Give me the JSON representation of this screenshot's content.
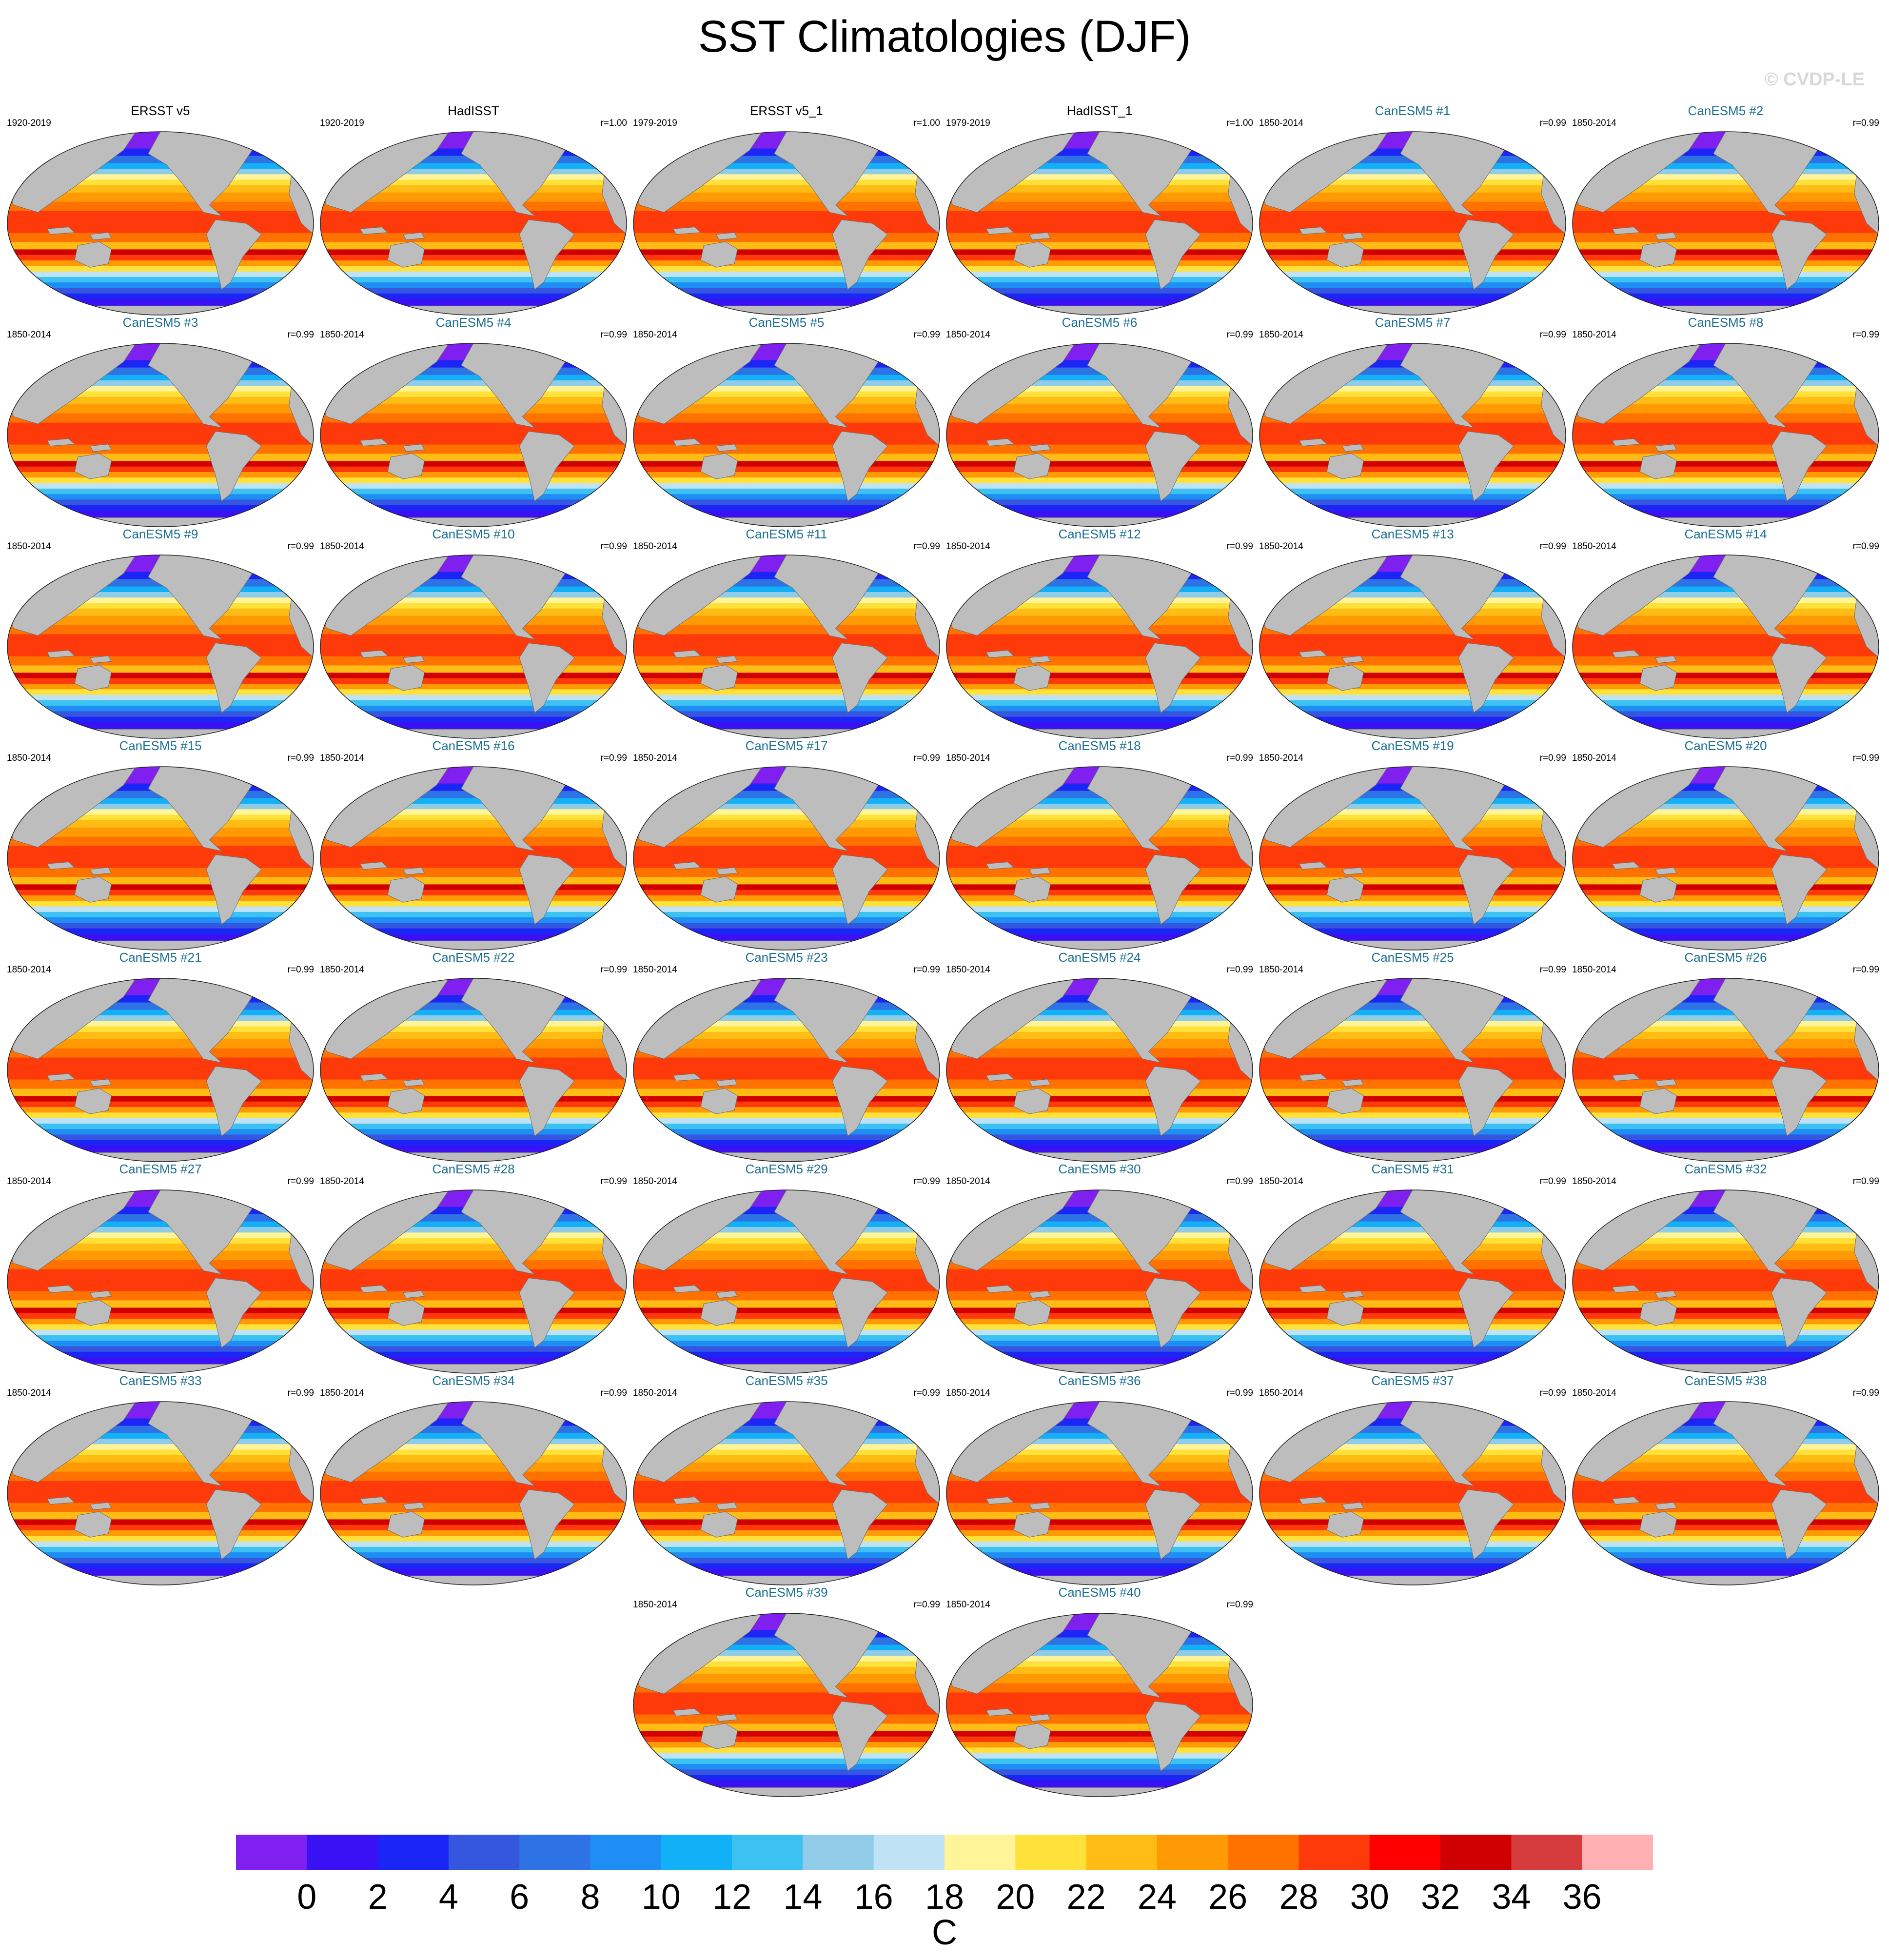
{
  "chart_data": {
    "type": "heatmap",
    "title": "SST Climatologies (DJF)",
    "watermark": "© CVDP-LE",
    "colorbar": {
      "units": "C",
      "ticks": [
        "0",
        "2",
        "4",
        "6",
        "8",
        "10",
        "12",
        "14",
        "16",
        "18",
        "20",
        "22",
        "24",
        "26",
        "28",
        "30",
        "32",
        "34",
        "36"
      ],
      "colors": [
        "#7f1ff0",
        "#3a10f5",
        "#1b25f5",
        "#3557df",
        "#2e73e6",
        "#1e8ef5",
        "#12b1f7",
        "#3cc2f2",
        "#90cbe8",
        "#bfe2f5",
        "#fff598",
        "#ffe13a",
        "#ffbc14",
        "#ff9a05",
        "#ff7200",
        "#ff3a0a",
        "#ff0000",
        "#d10000",
        "#d63b3d",
        "#ffb0b3"
      ]
    },
    "panels": [
      {
        "title": "ERSST v5",
        "years": "1920-2019",
        "corr": ""
      },
      {
        "title": "HadISST",
        "years": "1920-2019",
        "corr": "r=1.00"
      },
      {
        "title": "ERSST v5_1",
        "years": "1979-2019",
        "corr": "r=1.00"
      },
      {
        "title": "HadISST_1",
        "years": "1979-2019",
        "corr": "r=1.00"
      },
      {
        "title": "CanESM5 #1",
        "years": "1850-2014",
        "corr": "r=0.99"
      },
      {
        "title": "CanESM5 #2",
        "years": "1850-2014",
        "corr": "r=0.99"
      },
      {
        "title": "CanESM5 #3",
        "years": "1850-2014",
        "corr": "r=0.99"
      },
      {
        "title": "CanESM5 #4",
        "years": "1850-2014",
        "corr": "r=0.99"
      },
      {
        "title": "CanESM5 #5",
        "years": "1850-2014",
        "corr": "r=0.99"
      },
      {
        "title": "CanESM5 #6",
        "years": "1850-2014",
        "corr": "r=0.99"
      },
      {
        "title": "CanESM5 #7",
        "years": "1850-2014",
        "corr": "r=0.99"
      },
      {
        "title": "CanESM5 #8",
        "years": "1850-2014",
        "corr": "r=0.99"
      },
      {
        "title": "CanESM5 #9",
        "years": "1850-2014",
        "corr": "r=0.99"
      },
      {
        "title": "CanESM5 #10",
        "years": "1850-2014",
        "corr": "r=0.99"
      },
      {
        "title": "CanESM5 #11",
        "years": "1850-2014",
        "corr": "r=0.99"
      },
      {
        "title": "CanESM5 #12",
        "years": "1850-2014",
        "corr": "r=0.99"
      },
      {
        "title": "CanESM5 #13",
        "years": "1850-2014",
        "corr": "r=0.99"
      },
      {
        "title": "CanESM5 #14",
        "years": "1850-2014",
        "corr": "r=0.99"
      },
      {
        "title": "CanESM5 #15",
        "years": "1850-2014",
        "corr": "r=0.99"
      },
      {
        "title": "CanESM5 #16",
        "years": "1850-2014",
        "corr": "r=0.99"
      },
      {
        "title": "CanESM5 #17",
        "years": "1850-2014",
        "corr": "r=0.99"
      },
      {
        "title": "CanESM5 #18",
        "years": "1850-2014",
        "corr": "r=0.99"
      },
      {
        "title": "CanESM5 #19",
        "years": "1850-2014",
        "corr": "r=0.99"
      },
      {
        "title": "CanESM5 #20",
        "years": "1850-2014",
        "corr": "r=0.99"
      },
      {
        "title": "CanESM5 #21",
        "years": "1850-2014",
        "corr": "r=0.99"
      },
      {
        "title": "CanESM5 #22",
        "years": "1850-2014",
        "corr": "r=0.99"
      },
      {
        "title": "CanESM5 #23",
        "years": "1850-2014",
        "corr": "r=0.99"
      },
      {
        "title": "CanESM5 #24",
        "years": "1850-2014",
        "corr": "r=0.99"
      },
      {
        "title": "CanESM5 #25",
        "years": "1850-2014",
        "corr": "r=0.99"
      },
      {
        "title": "CanESM5 #26",
        "years": "1850-2014",
        "corr": "r=0.99"
      },
      {
        "title": "CanESM5 #27",
        "years": "1850-2014",
        "corr": "r=0.99"
      },
      {
        "title": "CanESM5 #28",
        "years": "1850-2014",
        "corr": "r=0.99"
      },
      {
        "title": "CanESM5 #29",
        "years": "1850-2014",
        "corr": "r=0.99"
      },
      {
        "title": "CanESM5 #30",
        "years": "1850-2014",
        "corr": "r=0.99"
      },
      {
        "title": "CanESM5 #31",
        "years": "1850-2014",
        "corr": "r=0.99"
      },
      {
        "title": "CanESM5 #32",
        "years": "1850-2014",
        "corr": "r=0.99"
      },
      {
        "title": "CanESM5 #33",
        "years": "1850-2014",
        "corr": "r=0.99"
      },
      {
        "title": "CanESM5 #34",
        "years": "1850-2014",
        "corr": "r=0.99"
      },
      {
        "title": "CanESM5 #35",
        "years": "1850-2014",
        "corr": "r=0.99"
      },
      {
        "title": "CanESM5 #36",
        "years": "1850-2014",
        "corr": "r=0.99"
      },
      {
        "title": "CanESM5 #37",
        "years": "1850-2014",
        "corr": "r=0.99"
      },
      {
        "title": "CanESM5 #38",
        "years": "1850-2014",
        "corr": "r=0.99"
      },
      {
        "title": "CanESM5 #39",
        "years": "1850-2014",
        "corr": "r=0.99"
      },
      {
        "title": "CanESM5 #40",
        "years": "1850-2014",
        "corr": "r=0.99"
      }
    ]
  }
}
